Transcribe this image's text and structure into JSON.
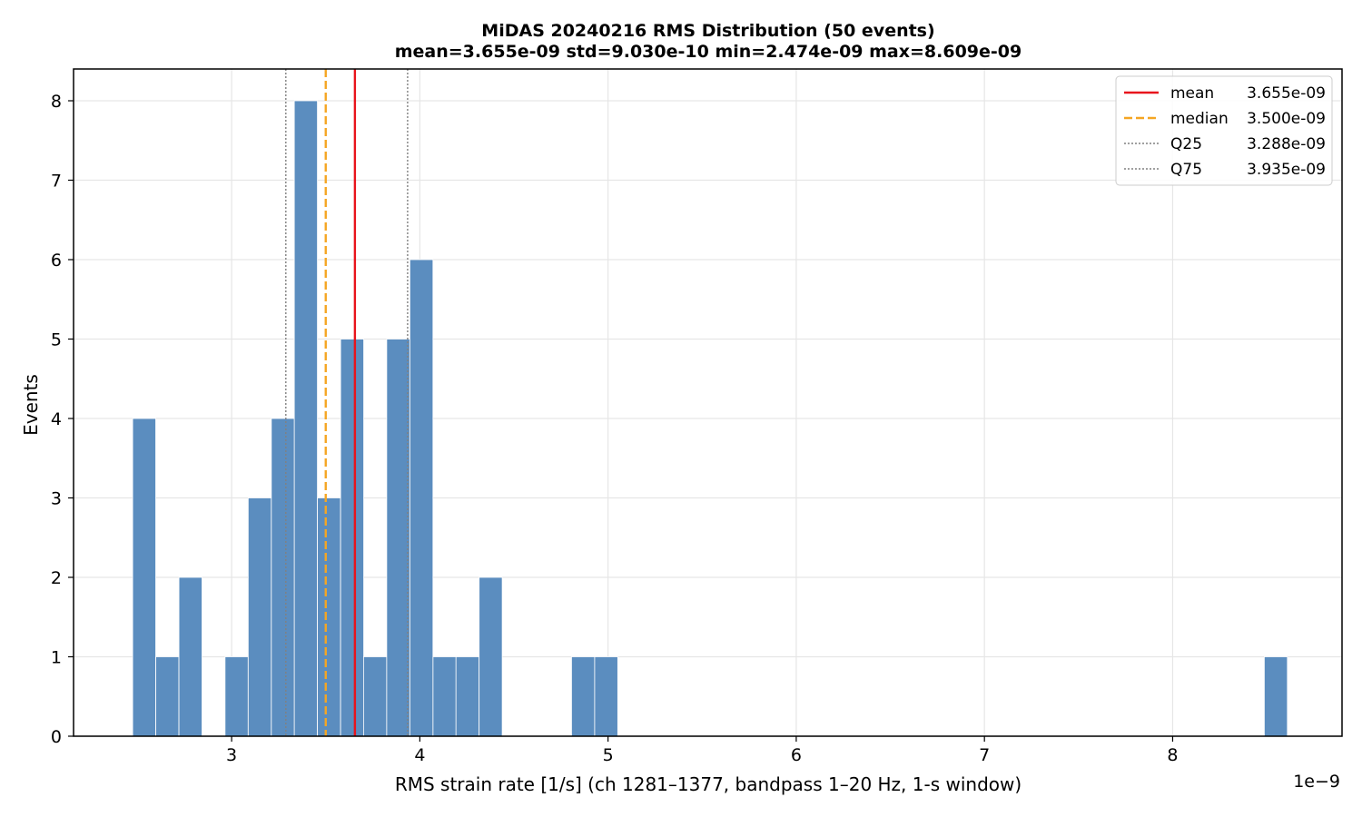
{
  "chart_data": {
    "type": "bar",
    "title": "MiDAS 20240216  RMS Distribution  (50 events)",
    "subtitle": "mean=3.655e-09  std=9.030e-10  min=2.474e-09  max=8.609e-09",
    "xlabel": "RMS strain rate [1/s]  (ch 1281–1377, bandpass 1–20 Hz, 1-s window)",
    "ylabel": "Events",
    "x_offset_label": "1e−9",
    "x_scale": 1e-09,
    "xlim": [
      2.16,
      8.9
    ],
    "ylim": [
      0,
      8.4
    ],
    "xticks": [
      3,
      4,
      5,
      6,
      7,
      8
    ],
    "xtick_labels": [
      "3",
      "4",
      "5",
      "6",
      "7",
      "8"
    ],
    "yticks": [
      0,
      1,
      2,
      3,
      4,
      5,
      6,
      7,
      8
    ],
    "ytick_labels": [
      "0",
      "1",
      "2",
      "3",
      "4",
      "5",
      "6",
      "7",
      "8"
    ],
    "grid": true,
    "bar_color": "#5b8dbf",
    "bin_width": 0.1227,
    "bins": [
      {
        "start": 2.474,
        "count": 4
      },
      {
        "start": 2.597,
        "count": 1
      },
      {
        "start": 2.72,
        "count": 2
      },
      {
        "start": 2.842,
        "count": 0
      },
      {
        "start": 2.965,
        "count": 1
      },
      {
        "start": 3.088,
        "count": 3
      },
      {
        "start": 3.211,
        "count": 4
      },
      {
        "start": 3.333,
        "count": 8
      },
      {
        "start": 3.456,
        "count": 3
      },
      {
        "start": 3.579,
        "count": 5
      },
      {
        "start": 3.701,
        "count": 1
      },
      {
        "start": 3.824,
        "count": 5
      },
      {
        "start": 3.947,
        "count": 6
      },
      {
        "start": 4.07,
        "count": 1
      },
      {
        "start": 4.192,
        "count": 1
      },
      {
        "start": 4.315,
        "count": 2
      },
      {
        "start": 4.438,
        "count": 0
      },
      {
        "start": 4.56,
        "count": 0
      },
      {
        "start": 4.683,
        "count": 0
      },
      {
        "start": 4.806,
        "count": 1
      },
      {
        "start": 4.929,
        "count": 1
      },
      {
        "start": 8.487,
        "count": 1
      }
    ],
    "reference_lines": [
      {
        "label": "mean",
        "value_text": "3.655e-09",
        "x": 3.655,
        "color": "#e8141c",
        "style": "solid"
      },
      {
        "label": "median",
        "value_text": "3.500e-09",
        "x": 3.5,
        "color": "#f5a623",
        "style": "dashed"
      },
      {
        "label": "Q25",
        "value_text": "3.288e-09",
        "x": 3.288,
        "color": "#808080",
        "style": "dotted"
      },
      {
        "label": "Q75",
        "value_text": "3.935e-09",
        "x": 3.935,
        "color": "#808080",
        "style": "dotted"
      }
    ],
    "legend_position": "top-right"
  }
}
